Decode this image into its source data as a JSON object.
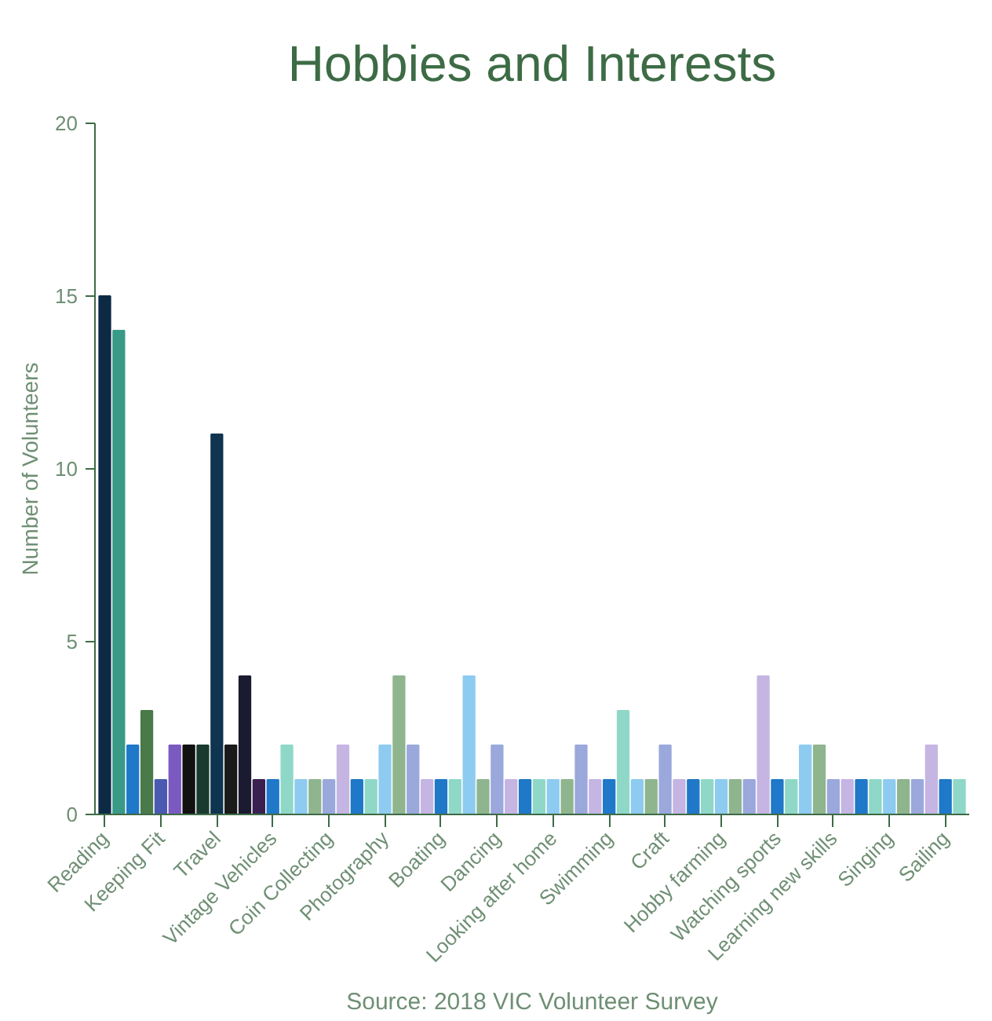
{
  "chart_data": {
    "type": "bar",
    "title": "Hobbies and Interests",
    "ylabel": "Number of Volunteers",
    "categories": [
      "Reading",
      null,
      null,
      null,
      "Keeping Fit",
      null,
      null,
      null,
      "Travel",
      null,
      null,
      null,
      "Vintage Vehicles",
      null,
      null,
      null,
      "Coin Collecting",
      null,
      null,
      null,
      "Photography",
      null,
      null,
      null,
      "Boating",
      null,
      null,
      null,
      "Dancing",
      null,
      null,
      null,
      "Looking after home",
      null,
      null,
      null,
      "Swimming",
      null,
      null,
      null,
      "Craft",
      null,
      null,
      null,
      "Hobby farming",
      null,
      null,
      null,
      "Watching sports",
      null,
      null,
      null,
      "Learning new skills",
      null,
      null,
      null,
      "Singing",
      null,
      null,
      null,
      "Sailing",
      null
    ],
    "values": [
      15,
      14,
      2,
      3,
      1,
      2,
      2,
      2,
      11,
      2,
      4,
      1,
      1,
      2,
      1,
      1,
      1,
      2,
      1,
      1,
      2,
      4,
      2,
      1,
      1,
      1,
      4,
      1,
      2,
      1,
      1,
      1,
      1,
      1,
      2,
      1,
      1,
      3,
      1,
      1,
      2,
      1,
      1,
      1,
      1,
      1,
      1,
      4,
      1,
      1,
      2,
      2,
      1,
      1,
      1,
      1,
      1,
      1,
      1,
      2,
      1,
      1
    ],
    "colors": [
      "#0d2a45",
      "#3a9a88",
      "#1f78c8",
      "#4a7a4a",
      "#4a5ab0",
      "#7a5ac0",
      "#111111",
      "#1a3a30",
      "#0f3450",
      "#1a1a1a",
      "#1a1a30",
      "#3a2050",
      "#1f78c8",
      "#8fd8c8",
      "#8ecbf0",
      "#8fb58f",
      "#9aa8dc",
      "#c5b5e3",
      "#1f78c8",
      "#8fd8c8",
      "#8ecbf0",
      "#8fb58f",
      "#9aa8dc",
      "#c5b5e3",
      "#1f78c8",
      "#8fd8c8",
      "#8ecbf0",
      "#8fb58f",
      "#9aa8dc",
      "#c5b5e3",
      "#1f78c8",
      "#8fd8c8",
      "#8ecbf0",
      "#8fb58f",
      "#9aa8dc",
      "#c5b5e3",
      "#1f78c8",
      "#8fd8c8",
      "#8ecbf0",
      "#8fb58f",
      "#9aa8dc",
      "#c5b5e3",
      "#1f78c8",
      "#8fd8c8",
      "#8ecbf0",
      "#8fb58f",
      "#9aa8dc",
      "#c5b5e3",
      "#1f78c8",
      "#8fd8c8",
      "#8ecbf0",
      "#8fb58f",
      "#9aa8dc",
      "#c5b5e3",
      "#1f78c8",
      "#8fd8c8",
      "#8ecbf0",
      "#8fb58f",
      "#9aa8dc",
      "#c5b5e3",
      "#1f78c8",
      "#8fd8c8"
    ],
    "ylim": [
      0,
      20
    ],
    "yticks": [
      0,
      5,
      10,
      15,
      20
    ],
    "grid": false,
    "annotations": [
      "Source: 2018 VIC Volunteer Survey"
    ]
  }
}
